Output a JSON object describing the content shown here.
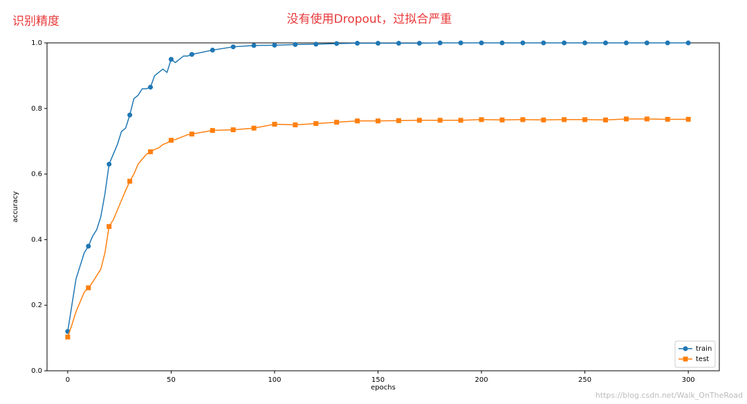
{
  "chart_data": {
    "type": "line",
    "title": "没有使用Dropout，过拟合严重",
    "subtitle": "识别精度",
    "xlabel": "epochs",
    "ylabel": "accuracy",
    "watermark": "https://blog.csdn.net/Walk_OnTheRoad",
    "x": [
      0,
      2,
      4,
      6,
      8,
      10,
      12,
      14,
      16,
      18,
      20,
      22,
      24,
      26,
      28,
      30,
      32,
      34,
      36,
      38,
      40,
      42,
      44,
      46,
      48,
      50,
      52,
      54,
      56,
      58,
      60,
      70,
      80,
      90,
      100,
      110,
      120,
      130,
      140,
      150,
      160,
      170,
      180,
      190,
      200,
      210,
      220,
      230,
      240,
      250,
      260,
      270,
      280,
      290,
      300
    ],
    "series": [
      {
        "name": "train",
        "color": "#1f77b4",
        "marker": "circle",
        "values": [
          0.12,
          0.2,
          0.28,
          0.32,
          0.36,
          0.38,
          0.41,
          0.43,
          0.47,
          0.54,
          0.63,
          0.66,
          0.69,
          0.73,
          0.74,
          0.78,
          0.83,
          0.84,
          0.86,
          0.86,
          0.865,
          0.9,
          0.91,
          0.92,
          0.91,
          0.95,
          0.94,
          0.95,
          0.96,
          0.96,
          0.965,
          0.978,
          0.988,
          0.992,
          0.993,
          0.995,
          0.996,
          0.998,
          0.999,
          0.999,
          0.999,
          0.999,
          1.0,
          1.0,
          1.0,
          1.0,
          1.0,
          1.0,
          1.0,
          1.0,
          1.0,
          1.0,
          1.0,
          1.0,
          1.0
        ]
      },
      {
        "name": "test",
        "color": "#ff7f0e",
        "marker": "square",
        "values": [
          0.103,
          0.14,
          0.18,
          0.21,
          0.24,
          0.253,
          0.27,
          0.29,
          0.31,
          0.36,
          0.44,
          0.46,
          0.49,
          0.52,
          0.55,
          0.578,
          0.6,
          0.63,
          0.645,
          0.66,
          0.668,
          0.675,
          0.68,
          0.69,
          0.695,
          0.703,
          0.705,
          0.71,
          0.715,
          0.72,
          0.722,
          0.733,
          0.735,
          0.74,
          0.752,
          0.75,
          0.754,
          0.758,
          0.762,
          0.762,
          0.763,
          0.764,
          0.764,
          0.764,
          0.766,
          0.765,
          0.766,
          0.765,
          0.766,
          0.766,
          0.765,
          0.768,
          0.768,
          0.767,
          0.767
        ]
      }
    ],
    "markevery": 10,
    "xlim": [
      -10,
      315
    ],
    "ylim": [
      0,
      1
    ],
    "xticks": [
      0,
      50,
      100,
      150,
      200,
      250,
      300
    ],
    "yticks": [
      {
        "value": 0,
        "label": "0.0"
      },
      0.2,
      0.4,
      0.6,
      0.8,
      {
        "value": 1,
        "label": "1.0"
      }
    ],
    "legend": "lower right"
  }
}
